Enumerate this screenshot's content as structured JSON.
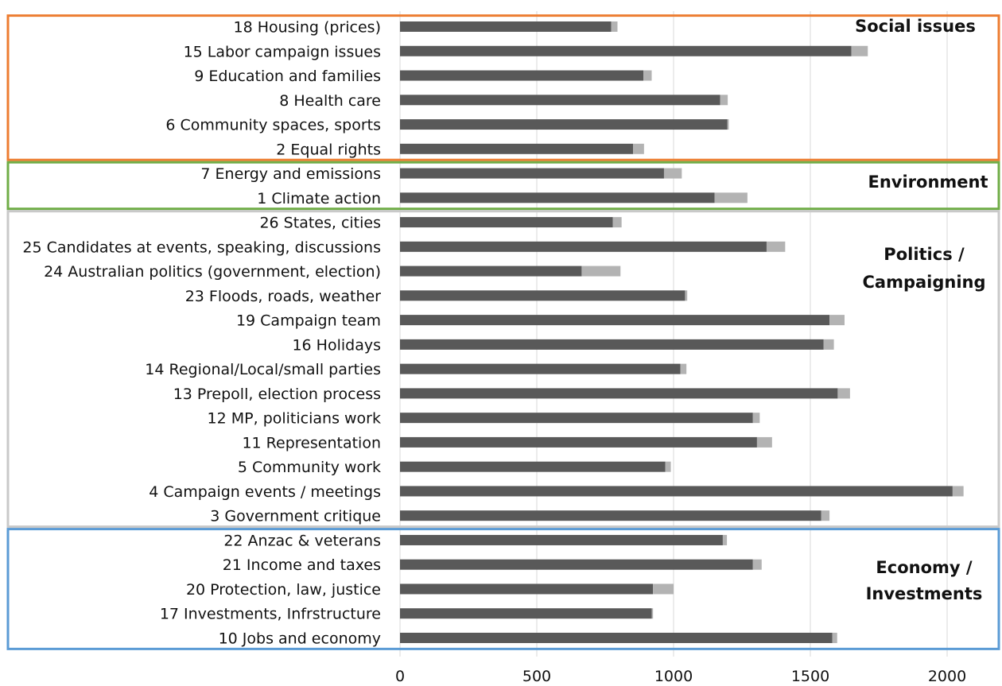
{
  "chart_data": {
    "type": "bar",
    "orientation": "horizontal",
    "stacked": true,
    "xlim": [
      0,
      2100
    ],
    "xticks": [
      0,
      500,
      1000,
      1500,
      2000
    ],
    "grid": true,
    "colors": {
      "primary": "#595959",
      "secondary": "#b3b3b3"
    },
    "categories": [
      "18 Housing (prices)",
      "15 Labor campaign issues",
      "9 Education and families",
      "8 Health care",
      "6 Community spaces, sports",
      "2 Equal rights",
      "7 Energy and emissions",
      "1 Climate action",
      "26 States, cities",
      "25 Candidates at events, speaking, discussions",
      "24 Australian politics (government, election)",
      "23 Floods, roads, weather",
      "19 Campaign team",
      "16 Holidays",
      "14 Regional/Local/small parties",
      "13 Prepoll, election process",
      "12 MP, politicians work ",
      "11 Representation",
      "5 Community work",
      "4 Campaign events / meetings",
      "3 Government  critique ",
      "22 Anzac & veterans",
      "21 Income and taxes",
      "20 Protection, law, justice",
      "17 Investments, Infrstructure",
      "10 Jobs and economy"
    ],
    "series": [
      {
        "values": [
          772,
          1650,
          890,
          1170,
          1197,
          852,
          965,
          1150,
          778,
          1340,
          664,
          1042,
          1570,
          1548,
          1025,
          1600,
          1290,
          1305,
          970,
          2020,
          1540,
          1180,
          1290,
          925,
          920,
          1580
        ]
      },
      {
        "values": [
          23,
          60,
          30,
          28,
          5,
          40,
          65,
          120,
          32,
          68,
          142,
          8,
          55,
          38,
          22,
          45,
          25,
          55,
          20,
          40,
          30,
          15,
          32,
          75,
          5,
          18
        ]
      }
    ],
    "groups": [
      {
        "label_lines": [
          "Social issues"
        ],
        "start": 0,
        "end": 5,
        "color": "#ed7d31"
      },
      {
        "label_lines": [
          "Environment"
        ],
        "start": 6,
        "end": 7,
        "color": "#70ad47"
      },
      {
        "label_lines": [
          "Politics /",
          "Campaigning"
        ],
        "start": 8,
        "end": 20,
        "color": "#c9c9c9"
      },
      {
        "label_lines": [
          "Economy /",
          "Investments"
        ],
        "start": 21,
        "end": 25,
        "color": "#5b9bd5"
      }
    ]
  }
}
